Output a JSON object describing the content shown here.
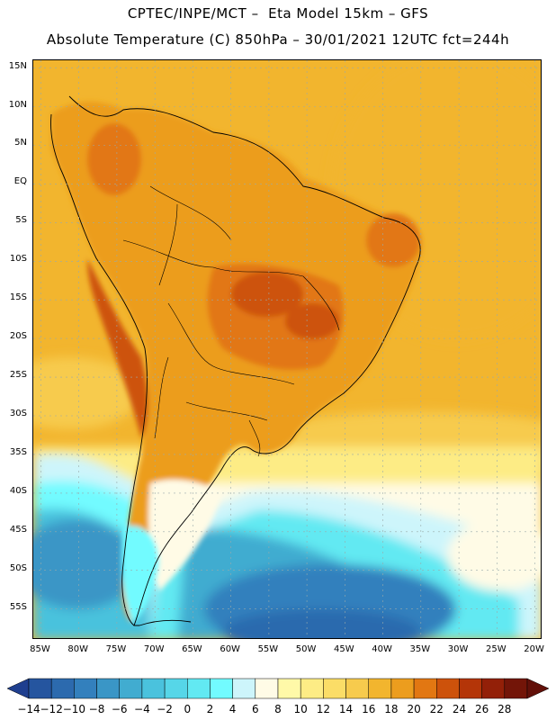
{
  "title": {
    "line1": "CPTEC/INPE/MCT –  Eta Model 15km – GFS",
    "line2": "Absolute Temperature (C) 850hPa – 30/01/2021 12UTC fct=244h"
  },
  "map": {
    "lon_range": [
      -86,
      -19
    ],
    "lat_range": [
      -59,
      16
    ],
    "lat_ticks": [
      "15N",
      "10N",
      "5N",
      "EQ",
      "5S",
      "10S",
      "15S",
      "20S",
      "25S",
      "30S",
      "35S",
      "40S",
      "45S",
      "50S",
      "55S"
    ],
    "lon_ticks": [
      "85W",
      "80W",
      "75W",
      "70W",
      "65W",
      "60W",
      "55W",
      "50W",
      "45W",
      "40W",
      "35W",
      "30W",
      "25W",
      "20W"
    ],
    "gridlines": "dotted"
  },
  "colorbar": {
    "labels": [
      "-14",
      "-12",
      "-10",
      "-8",
      "-6",
      "-4",
      "-2",
      "0",
      "2",
      "4",
      "6",
      "8",
      "10",
      "12",
      "14",
      "16",
      "18",
      "20",
      "22",
      "24",
      "26",
      "28"
    ],
    "colors": [
      "#1f3f8f",
      "#25559f",
      "#2c6aae",
      "#3380bd",
      "#3a96c6",
      "#41acd0",
      "#4ac2dd",
      "#56d6e8",
      "#62e9f2",
      "#72fbff",
      "#cdf5fb",
      "#fffbe6",
      "#fff9a8",
      "#fdec85",
      "#fbdd67",
      "#f7cb4d",
      "#f2b52e",
      "#ec9d1e",
      "#e27712",
      "#cd520b",
      "#b43508",
      "#932008",
      "#731508",
      "#621009"
    ]
  }
}
